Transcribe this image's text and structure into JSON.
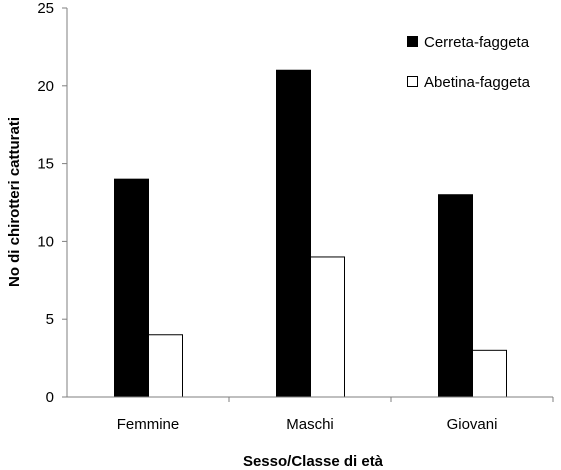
{
  "chart_data": {
    "type": "bar",
    "title": "",
    "xlabel": "Sesso/Classe di età",
    "ylabel": "No di chirotteri catturati",
    "categories": [
      "Femmine",
      "Maschi",
      "Giovani"
    ],
    "series": [
      {
        "name": "Cerreta-faggeta",
        "values": [
          14,
          21,
          13
        ],
        "color": "#000000"
      },
      {
        "name": "Abetina-faggeta",
        "values": [
          4,
          9,
          3
        ],
        "color": "#ffffff"
      }
    ],
    "ylim": [
      0,
      25
    ],
    "yticks": [
      0,
      5,
      10,
      15,
      20,
      25
    ],
    "grid": false,
    "legend_position": "top-right"
  }
}
